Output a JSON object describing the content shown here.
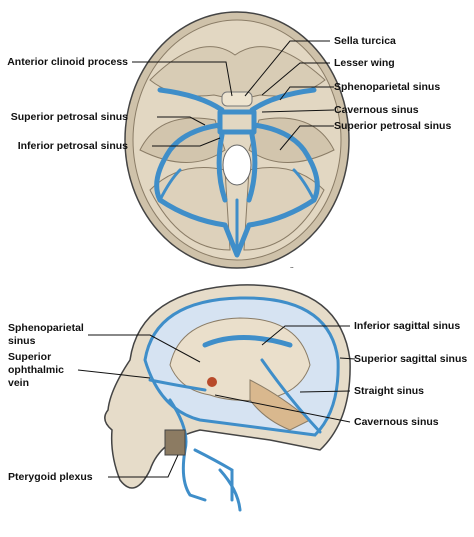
{
  "top_panel": {
    "left_labels": [
      [
        "Anterior clinoid process"
      ],
      [
        "Superior petrosal sinus"
      ],
      [
        "Inferior petrosal sinus"
      ]
    ],
    "right_labels": [
      [
        "Sella turcica"
      ],
      [
        "Lesser wing"
      ],
      [
        "Sphenoparietal sinus"
      ],
      [
        "Cavernous sinus"
      ],
      [
        "Superior petrosal sinus"
      ]
    ]
  },
  "bottom_panel": {
    "left_labels": [
      [
        "Sphenoparietal",
        "sinus"
      ],
      [
        "Superior",
        "ophthalmic",
        "vein"
      ],
      [
        "Pterygoid plexus"
      ]
    ],
    "right_labels": [
      [
        "Inferior sagittal sinus"
      ],
      [
        "Superior sagittal sinus"
      ],
      [
        "Straight sinus"
      ],
      [
        "Cavernous sinus"
      ]
    ]
  }
}
